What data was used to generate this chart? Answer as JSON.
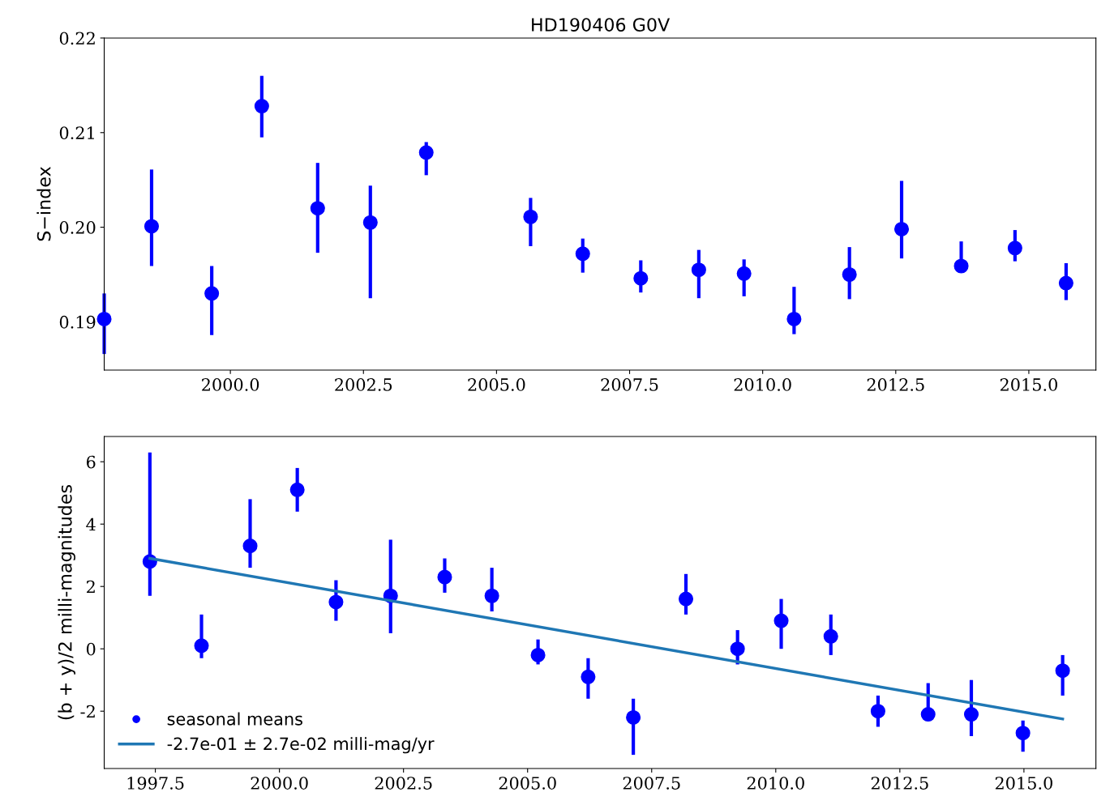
{
  "chart_data": [
    {
      "type": "scatter",
      "title": "HD190406 G0V",
      "ylabel": "S−index",
      "xlim": [
        1997.63,
        2016.26
      ],
      "ylim": [
        0.1849,
        0.22
      ],
      "xticks": [
        {
          "value": 2000,
          "label": "2000.0"
        },
        {
          "value": 2002.5,
          "label": "2002.5"
        },
        {
          "value": 2005,
          "label": "2005.0"
        },
        {
          "value": 2007.5,
          "label": "2007.5"
        },
        {
          "value": 2010,
          "label": "2010.0"
        },
        {
          "value": 2012.5,
          "label": "2012.5"
        },
        {
          "value": 2015,
          "label": "2015.0"
        }
      ],
      "yticks": [
        0.19,
        {
          "value": 0.2,
          "label": "0.20"
        },
        0.21,
        0.22
      ],
      "grid": false,
      "legend": false,
      "marker": "circle",
      "series": [
        {
          "color": "#0000ff",
          "x": [
            1997.63,
            1998.52,
            1999.65,
            2000.59,
            2001.64,
            2002.63,
            2003.68,
            2005.64,
            2006.62,
            2007.71,
            2008.8,
            2009.65,
            2010.59,
            2011.63,
            2012.61,
            2013.73,
            2014.74,
            2015.7
          ],
          "values": [
            0.1903,
            0.2001,
            0.193,
            0.2128,
            0.202,
            0.2005,
            0.2079,
            0.2011,
            0.1972,
            0.1946,
            0.1955,
            0.1951,
            0.1903,
            0.195,
            0.1998,
            0.1959,
            0.1978,
            0.1941
          ],
          "errors": [
            [
              0.1866,
              0.193
            ],
            [
              0.1959,
              0.2061
            ],
            [
              0.1886,
              0.1959
            ],
            [
              0.2095,
              0.216
            ],
            [
              0.1973,
              0.2068
            ],
            [
              0.1925,
              0.2044
            ],
            [
              0.2055,
              0.209
            ],
            [
              0.198,
              0.2031
            ],
            [
              0.1952,
              0.1988
            ],
            [
              0.1931,
              0.1965
            ],
            [
              0.1925,
              0.1976
            ],
            [
              0.1927,
              0.1966
            ],
            [
              0.1887,
              0.1937
            ],
            [
              0.1924,
              0.1979
            ],
            [
              0.1967,
              0.2049
            ],
            [
              0.1952,
              0.1985
            ],
            [
              0.1964,
              0.1997
            ],
            [
              0.1923,
              0.1962
            ]
          ]
        }
      ]
    },
    {
      "type": "scatter",
      "ylabel": "(b + y)/2 milli-magnitudes",
      "xlim": [
        1996.47,
        2016.45
      ],
      "ylim": [
        -3.84,
        6.81
      ],
      "xticks": [
        {
          "value": 1997.5,
          "label": "1997.5"
        },
        {
          "value": 2000,
          "label": "2000.0"
        },
        {
          "value": 2002.5,
          "label": "2002.5"
        },
        {
          "value": 2005,
          "label": "2005.0"
        },
        {
          "value": 2007.5,
          "label": "2007.5"
        },
        {
          "value": 2010,
          "label": "2010.0"
        },
        {
          "value": 2012.5,
          "label": "2012.5"
        },
        {
          "value": 2015,
          "label": "2015.0"
        }
      ],
      "yticks": [
        -2,
        0,
        2,
        4,
        6
      ],
      "grid": false,
      "legend": "bottom left",
      "marker": "circle",
      "series": [
        {
          "name": "seasonal means",
          "color": "#0000ff",
          "x": [
            1997.39,
            1998.43,
            1999.41,
            2000.36,
            2001.14,
            2002.24,
            2003.33,
            2004.28,
            2005.21,
            2006.22,
            2007.13,
            2008.19,
            2009.23,
            2010.11,
            2011.11,
            2012.06,
            2013.07,
            2013.94,
            2014.98,
            2015.78
          ],
          "values": [
            2.8,
            0.1,
            3.3,
            5.1,
            1.5,
            1.7,
            2.3,
            1.7,
            -0.2,
            -0.9,
            -2.2,
            1.6,
            0.0,
            0.9,
            0.4,
            -2.0,
            -2.1,
            -2.1,
            -2.7,
            -0.7
          ],
          "errors": [
            [
              1.7,
              6.3
            ],
            [
              -0.3,
              1.1
            ],
            [
              2.6,
              4.8
            ],
            [
              4.4,
              5.8
            ],
            [
              0.9,
              2.2
            ],
            [
              0.5,
              3.5
            ],
            [
              1.8,
              2.9
            ],
            [
              1.2,
              2.6
            ],
            [
              -0.5,
              0.3
            ],
            [
              -1.6,
              -0.3
            ],
            [
              -3.4,
              -1.6
            ],
            [
              1.1,
              2.4
            ],
            [
              -0.5,
              0.6
            ],
            [
              0.0,
              1.6
            ],
            [
              -0.2,
              1.1
            ],
            [
              -2.5,
              -1.5
            ],
            [
              -2.1,
              -1.1
            ],
            [
              -2.8,
              -1.0
            ],
            [
              -3.3,
              -2.3
            ],
            [
              -1.5,
              -0.2
            ]
          ]
        },
        {
          "type": "line",
          "name": "-2.7e-01 ± 2.7e-02 milli-mag/yr",
          "color": "#1f77b4",
          "marker": "none",
          "line_style": "solid",
          "x": [
            1997.39,
            2015.78
          ],
          "values": [
            2.9,
            -2.25
          ]
        }
      ]
    }
  ]
}
